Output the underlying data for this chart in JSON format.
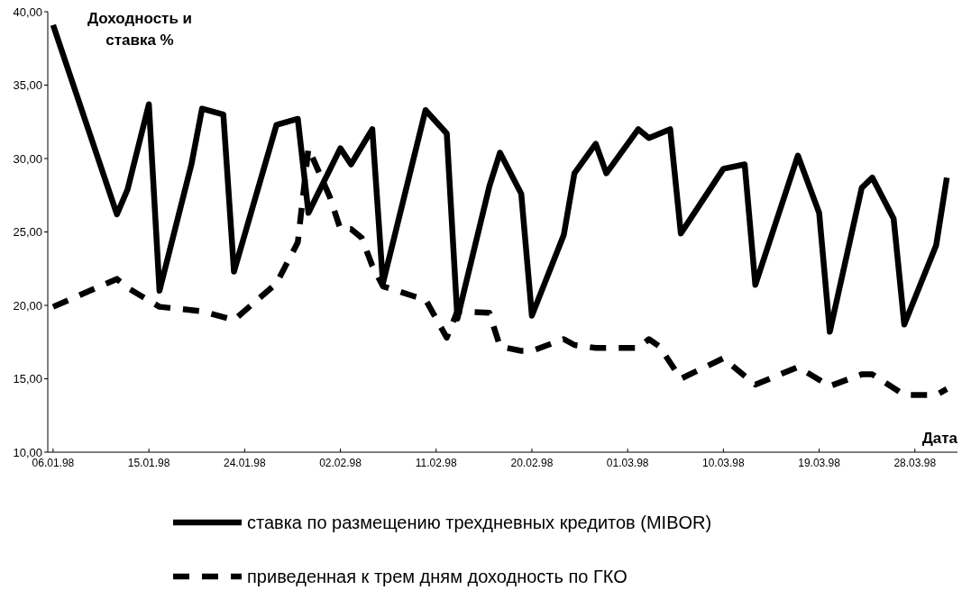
{
  "chart_data": {
    "type": "line",
    "ylabel": "Доходность и ставка %",
    "xlabel": "Дата",
    "xlim": [
      "1998-01-05T12:00",
      "1998-04-01T00:00"
    ],
    "xticks": [
      {
        "value": "1998-01-06",
        "label": "06.01.98"
      },
      {
        "value": "1998-01-15",
        "label": "15.01.98"
      },
      {
        "value": "1998-01-24",
        "label": "24.01.98"
      },
      {
        "value": "1998-02-02",
        "label": "02.02.98"
      },
      {
        "value": "1998-02-11",
        "label": "11.02.98"
      },
      {
        "value": "1998-02-20",
        "label": "20.02.98"
      },
      {
        "value": "1998-03-01",
        "label": "01.03.98"
      },
      {
        "value": "1998-03-10",
        "label": "10.03.98"
      },
      {
        "value": "1998-03-19",
        "label": "19.03.98"
      },
      {
        "value": "1998-03-28",
        "label": "28.03.98"
      }
    ],
    "ylim": [
      10,
      40
    ],
    "yticks": [
      {
        "value": 10,
        "label": "10,00"
      },
      {
        "value": 15,
        "label": "15,00"
      },
      {
        "value": 20,
        "label": "20,00"
      },
      {
        "value": 25,
        "label": "25,00"
      },
      {
        "value": 30,
        "label": "30,00"
      },
      {
        "value": 35,
        "label": "35,00"
      },
      {
        "value": 40,
        "label": "40,00"
      }
    ],
    "grid": false,
    "legend": "bottom",
    "series": [
      {
        "name": "ставка по размещению трехдневных кредитов (MIBOR)",
        "color": "#000000",
        "line_style": "solid",
        "x": [
          "1998-01-06",
          "1998-01-12",
          "1998-01-13",
          "1998-01-15",
          "1998-01-16",
          "1998-01-19",
          "1998-01-20",
          "1998-01-22",
          "1998-01-23",
          "1998-01-27",
          "1998-01-29",
          "1998-01-30",
          "1998-02-02",
          "1998-02-03",
          "1998-02-05",
          "1998-02-06",
          "1998-02-10",
          "1998-02-12",
          "1998-02-13",
          "1998-02-16",
          "1998-02-17",
          "1998-02-19",
          "1998-02-20",
          "1998-02-23",
          "1998-02-24",
          "1998-02-26",
          "1998-02-27",
          "1998-03-02",
          "1998-03-03",
          "1998-03-05",
          "1998-03-06",
          "1998-03-10",
          "1998-03-12",
          "1998-03-13",
          "1998-03-17",
          "1998-03-19",
          "1998-03-20",
          "1998-03-23",
          "1998-03-24",
          "1998-03-26",
          "1998-03-27",
          "1998-03-30",
          "1998-03-31"
        ],
        "values": [
          39.1,
          26.2,
          27.9,
          33.7,
          21.0,
          29.6,
          33.4,
          33.0,
          22.3,
          32.3,
          32.7,
          26.3,
          30.7,
          29.6,
          32.0,
          21.5,
          33.3,
          31.7,
          19.1,
          28.1,
          30.4,
          27.6,
          19.3,
          24.8,
          29.0,
          31.0,
          29.0,
          32.0,
          31.4,
          32.0,
          24.9,
          29.3,
          29.6,
          21.4,
          30.2,
          26.3,
          18.2,
          28.0,
          28.7,
          25.9,
          18.7,
          24.1,
          28.7
        ]
      },
      {
        "name": "приведенная к трем дням доходность по ГКО",
        "color": "#000000",
        "line_style": "dashed",
        "x": [
          "1998-01-06",
          "1998-01-12",
          "1998-01-13",
          "1998-01-16",
          "1998-01-20",
          "1998-01-23",
          "1998-01-27",
          "1998-01-29",
          "1998-01-30",
          "1998-02-01",
          "1998-02-02",
          "1998-02-03",
          "1998-02-04",
          "1998-02-05",
          "1998-02-06",
          "1998-02-09",
          "1998-02-10",
          "1998-02-12",
          "1998-02-13",
          "1998-02-16",
          "1998-02-17",
          "1998-02-19",
          "1998-02-20",
          "1998-02-23",
          "1998-02-24",
          "1998-02-26",
          "1998-02-27",
          "1998-03-02",
          "1998-03-03",
          "1998-03-04",
          "1998-03-06",
          "1998-03-10",
          "1998-03-13",
          "1998-03-17",
          "1998-03-20",
          "1998-03-23",
          "1998-03-24",
          "1998-03-27",
          "1998-03-30",
          "1998-03-31"
        ],
        "values": [
          19.9,
          21.8,
          21.2,
          19.9,
          19.6,
          19.0,
          21.5,
          24.3,
          30.7,
          27.4,
          25.2,
          25.2,
          24.6,
          22.7,
          21.3,
          20.6,
          20.4,
          17.8,
          19.6,
          19.5,
          17.2,
          16.9,
          16.9,
          17.7,
          17.3,
          17.1,
          17.1,
          17.1,
          17.7,
          17.2,
          15.0,
          16.4,
          14.6,
          15.8,
          14.5,
          15.3,
          15.3,
          13.9,
          13.9,
          14.3
        ]
      }
    ]
  }
}
